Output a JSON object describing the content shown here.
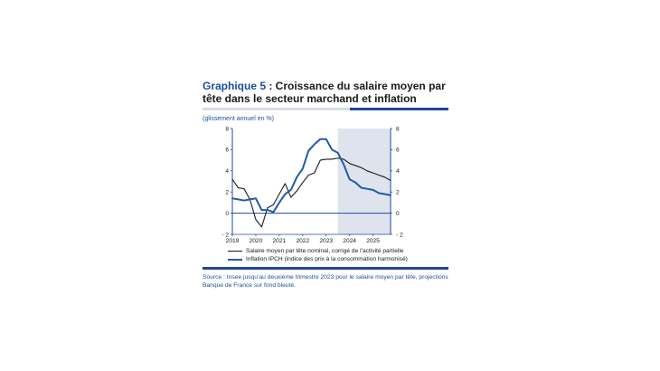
{
  "figure": {
    "label": "Graphique 5",
    "title_rest": " : Croissance du salaire moyen par tête dans le secteur marchand et inflation",
    "subtitle": "(glissement annuel en %)",
    "legend": [
      "Salaire moyen par tête nominal, corrigé de l’activité partielle",
      "Inflation IPCH (indice des prix à la consommation harmonisé)"
    ],
    "source": "Source : Insee jusqu’au deuxième trimestre 2023 pour le salaire moyen par tête, projections Banque de France sur fond bleuté."
  },
  "chart_data": {
    "type": "line",
    "x_unit": "quarter",
    "x_tick_labels": [
      "2019",
      "2020",
      "2021",
      "2022",
      "2023",
      "2024",
      "2025"
    ],
    "xlim": [
      "2019-Q1",
      "2025-Q4"
    ],
    "y_ticks": [
      -2,
      0,
      2,
      4,
      6,
      8
    ],
    "y_tick_labels": [
      "- 2",
      "0",
      "2",
      "4",
      "6",
      "8"
    ],
    "ylim": [
      -2,
      8
    ],
    "right_axis": {
      "ylim": [
        -2,
        8
      ],
      "ticks": [
        -2,
        0,
        2,
        4,
        6,
        8
      ]
    },
    "projection_shading": {
      "from": "2023-Q3",
      "to": "2025-Q4",
      "color": "#dfe3ee"
    },
    "grid": false,
    "series": [
      {
        "name": "Salaire moyen par tête nominal, corrigé de l’activité partielle",
        "color": "#1a1a1a",
        "x": [
          "2019-Q1",
          "2019-Q2",
          "2019-Q3",
          "2019-Q4",
          "2020-Q1",
          "2020-Q2",
          "2020-Q3",
          "2020-Q4",
          "2021-Q1",
          "2021-Q2",
          "2021-Q3",
          "2021-Q4",
          "2022-Q1",
          "2022-Q2",
          "2022-Q3",
          "2022-Q4",
          "2023-Q1",
          "2023-Q2",
          "2023-Q3",
          "2023-Q4",
          "2024-Q1",
          "2024-Q2",
          "2024-Q3",
          "2024-Q4",
          "2025-Q1",
          "2025-Q2",
          "2025-Q3",
          "2025-Q4"
        ],
        "values": [
          3.2,
          2.4,
          2.3,
          1.3,
          -0.6,
          -1.3,
          0.5,
          0.8,
          1.8,
          2.8,
          1.5,
          2.1,
          2.9,
          3.6,
          3.8,
          5.0,
          5.1,
          5.1,
          5.2,
          5.1,
          4.7,
          4.5,
          4.3,
          4.0,
          3.8,
          3.6,
          3.4,
          3.1
        ]
      },
      {
        "name": "Inflation IPCH (indice des prix à la consommation harmonisé)",
        "color": "#1f5ba8",
        "x": [
          "2019-Q1",
          "2019-Q2",
          "2019-Q3",
          "2019-Q4",
          "2020-Q1",
          "2020-Q2",
          "2020-Q3",
          "2020-Q4",
          "2021-Q1",
          "2021-Q2",
          "2021-Q3",
          "2021-Q4",
          "2022-Q1",
          "2022-Q2",
          "2022-Q3",
          "2022-Q4",
          "2023-Q1",
          "2023-Q2",
          "2023-Q3",
          "2023-Q4",
          "2024-Q1",
          "2024-Q2",
          "2024-Q3",
          "2024-Q4",
          "2025-Q1",
          "2025-Q2",
          "2025-Q3",
          "2025-Q4"
        ],
        "values": [
          1.4,
          1.3,
          1.2,
          1.3,
          1.4,
          0.3,
          0.3,
          0.1,
          1.0,
          1.8,
          2.2,
          3.4,
          4.2,
          5.9,
          6.5,
          7.0,
          7.0,
          6.0,
          5.7,
          4.6,
          3.2,
          2.9,
          2.4,
          2.3,
          2.2,
          1.9,
          1.8,
          1.7
        ]
      }
    ]
  }
}
